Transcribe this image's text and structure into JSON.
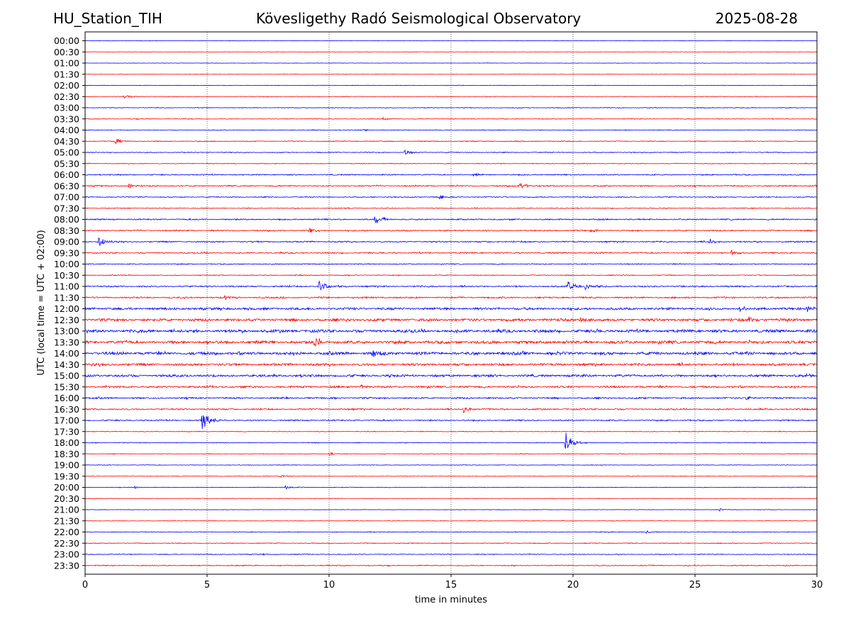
{
  "header": {
    "station": "HU_Station_TIH",
    "observatory": "Kövesligethy Radó Seismological Observatory",
    "date": "2025-08-28"
  },
  "chart_data": {
    "type": "line",
    "xlabel": "time in minutes",
    "ylabel": "UTC (local time = UTC + 02:00)",
    "xlim": [
      0,
      30
    ],
    "xticks": [
      0,
      5,
      10,
      15,
      20,
      25,
      30
    ],
    "vertical_gridlines": [
      5,
      10,
      15,
      20,
      25
    ],
    "grid_style": "dotted",
    "colors": [
      "#0000ff",
      "#ff0000"
    ],
    "color_rule": "alternating: on-the-hour traces blue, half-hour traces red",
    "traces": [
      {
        "label": "00:00",
        "noise": 0.3,
        "events": []
      },
      {
        "label": "00:30",
        "noise": 0.3,
        "events": []
      },
      {
        "label": "01:00",
        "noise": 0.3,
        "events": []
      },
      {
        "label": "01:30",
        "noise": 0.3,
        "events": []
      },
      {
        "label": "02:00",
        "noise": 0.35,
        "events": []
      },
      {
        "label": "02:30",
        "noise": 0.35,
        "events": [
          {
            "t": 1.6,
            "amp": 3
          }
        ]
      },
      {
        "label": "03:00",
        "noise": 0.5,
        "events": []
      },
      {
        "label": "03:30",
        "noise": 0.5,
        "events": [
          {
            "t": 12.2,
            "amp": 2
          }
        ]
      },
      {
        "label": "04:00",
        "noise": 0.5,
        "events": [
          {
            "t": 11.4,
            "amp": 2
          }
        ]
      },
      {
        "label": "04:30",
        "noise": 0.6,
        "events": [
          {
            "t": 1.2,
            "amp": 5
          }
        ]
      },
      {
        "label": "05:00",
        "noise": 0.6,
        "events": [
          {
            "t": 13.1,
            "amp": 3
          }
        ]
      },
      {
        "label": "05:30",
        "noise": 0.55,
        "events": []
      },
      {
        "label": "06:00",
        "noise": 0.8,
        "events": [
          {
            "t": 15.9,
            "amp": 2.5
          }
        ]
      },
      {
        "label": "06:30",
        "noise": 0.9,
        "events": [
          {
            "t": 17.8,
            "amp": 6
          },
          {
            "t": 1.8,
            "amp": 3
          }
        ]
      },
      {
        "label": "07:00",
        "noise": 0.7,
        "events": [
          {
            "t": 14.5,
            "amp": 4
          }
        ]
      },
      {
        "label": "07:30",
        "noise": 0.6,
        "events": []
      },
      {
        "label": "08:00",
        "noise": 0.9,
        "events": [
          {
            "t": 11.9,
            "amp": 8
          }
        ]
      },
      {
        "label": "08:30",
        "noise": 0.9,
        "events": [
          {
            "t": 9.2,
            "amp": 4
          },
          {
            "t": 20.7,
            "amp": 3
          }
        ]
      },
      {
        "label": "09:00",
        "noise": 0.9,
        "events": [
          {
            "t": 0.55,
            "amp": 8
          },
          {
            "t": 25.6,
            "amp": 4
          }
        ]
      },
      {
        "label": "09:30",
        "noise": 0.9,
        "events": [
          {
            "t": 26.5,
            "amp": 4
          }
        ]
      },
      {
        "label": "10:00",
        "noise": 0.7,
        "events": []
      },
      {
        "label": "10:30",
        "noise": 0.6,
        "events": []
      },
      {
        "label": "11:00",
        "noise": 1.0,
        "events": [
          {
            "t": 9.6,
            "amp": 9
          },
          {
            "t": 19.8,
            "amp": 7
          },
          {
            "t": 20.5,
            "amp": 5
          }
        ]
      },
      {
        "label": "11:30",
        "noise": 1.1,
        "events": [
          {
            "t": 5.7,
            "amp": 3
          }
        ]
      },
      {
        "label": "12:00",
        "noise": 1.6,
        "events": [
          {
            "t": 26.8,
            "amp": 5
          },
          {
            "t": 29.6,
            "amp": 4
          }
        ]
      },
      {
        "label": "12:30",
        "noise": 1.8,
        "events": [
          {
            "t": 20.3,
            "amp": 4
          },
          {
            "t": 27.2,
            "amp": 5
          }
        ]
      },
      {
        "label": "13:00",
        "noise": 2.0,
        "events": []
      },
      {
        "label": "13:30",
        "noise": 2.0,
        "events": [
          {
            "t": 9.4,
            "amp": 8
          }
        ]
      },
      {
        "label": "14:00",
        "noise": 2.0,
        "events": [
          {
            "t": 11.8,
            "amp": 7
          }
        ]
      },
      {
        "label": "14:30",
        "noise": 1.6,
        "events": []
      },
      {
        "label": "15:00",
        "noise": 1.6,
        "events": [
          {
            "t": 29.5,
            "amp": 3
          }
        ]
      },
      {
        "label": "15:30",
        "noise": 1.3,
        "events": [
          {
            "t": 11.3,
            "amp": 3
          }
        ]
      },
      {
        "label": "16:00",
        "noise": 1.1,
        "events": [
          {
            "t": 27.1,
            "amp": 3
          }
        ]
      },
      {
        "label": "16:30",
        "noise": 1.0,
        "events": [
          {
            "t": 15.5,
            "amp": 5
          }
        ]
      },
      {
        "label": "17:00",
        "noise": 0.9,
        "events": [
          {
            "t": 4.8,
            "amp": 15
          }
        ]
      },
      {
        "label": "17:30",
        "noise": 0.5,
        "events": []
      },
      {
        "label": "18:00",
        "noise": 0.5,
        "events": [
          {
            "t": 19.7,
            "amp": 15
          }
        ]
      },
      {
        "label": "18:30",
        "noise": 0.45,
        "events": [
          {
            "t": 10.0,
            "amp": 2
          }
        ]
      },
      {
        "label": "19:00",
        "noise": 0.4,
        "events": []
      },
      {
        "label": "19:30",
        "noise": 0.4,
        "events": [
          {
            "t": 8.0,
            "amp": 2
          }
        ]
      },
      {
        "label": "20:00",
        "noise": 0.4,
        "events": [
          {
            "t": 8.2,
            "amp": 3
          },
          {
            "t": 2.0,
            "amp": 2
          }
        ]
      },
      {
        "label": "20:30",
        "noise": 0.35,
        "events": []
      },
      {
        "label": "21:00",
        "noise": 0.35,
        "events": [
          {
            "t": 26.0,
            "amp": 2
          }
        ]
      },
      {
        "label": "21:30",
        "noise": 0.35,
        "events": []
      },
      {
        "label": "22:00",
        "noise": 0.5,
        "events": [
          {
            "t": 23.0,
            "amp": 2
          }
        ]
      },
      {
        "label": "22:30",
        "noise": 0.55,
        "events": []
      },
      {
        "label": "23:00",
        "noise": 0.6,
        "events": [
          {
            "t": 7.3,
            "amp": 2
          }
        ]
      },
      {
        "label": "23:30",
        "noise": 0.7,
        "events": []
      }
    ]
  }
}
